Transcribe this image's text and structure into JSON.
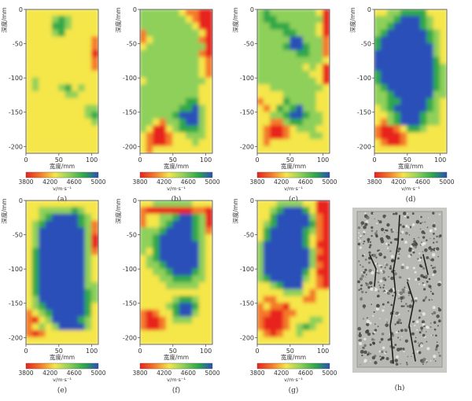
{
  "colorbar": {
    "colors": [
      "#e8221e",
      "#f4792a",
      "#f5e64a",
      "#8ed05a",
      "#2fa84a",
      "#2a4fb8"
    ],
    "ticks": [
      "3800",
      "4200",
      "4600",
      "5000"
    ],
    "unit_label": "v/m·s⁻¹"
  },
  "axes": {
    "ylabel": "深度/mm",
    "xlabel": "宽度/mm",
    "y_ticks": [
      "0",
      "-50",
      "-100",
      "-150",
      "-200"
    ],
    "x_ticks": [
      "0",
      "50",
      "100"
    ]
  },
  "panels": [
    {
      "label": "(a)"
    },
    {
      "label": "(b)"
    },
    {
      "label": "(c)"
    },
    {
      "label": "(d)"
    },
    {
      "label": "(e)"
    },
    {
      "label": "(f)"
    },
    {
      "label": "(g)"
    },
    {
      "label": "(h)"
    }
  ],
  "photo": {
    "colors": {
      "base": "#b7b7b4",
      "speck": "#3d3d3b",
      "crack": "#1e1e1c"
    }
  },
  "chart_data": [
    {
      "type": "heatmap",
      "panel": "(a)",
      "xlim": [
        0,
        110
      ],
      "ylim": [
        -210,
        0
      ],
      "value_range": [
        3800,
        5000
      ],
      "value_unit": "m/s",
      "grid": [
        "zzzzzzzzzzz",
        "zzzzgGgzzzz",
        "zzzzGGgzzzz",
        "zzzzgGzzzzz",
        "zzzzzzzzzzo",
        "zzzzzzzzzzo",
        "zzzzzzzzzzr",
        "zzzzzzzzzzo",
        "zzzzzzzzzzo",
        "zzzzzzzzzzz",
        "zgzzzzzzzzz",
        "zgzzzgGzgzz",
        "zzzzzzggzzz",
        "zzzzzzzzzzz",
        "zzzzzzzzzgg",
        "zzzzzzzzzgG",
        "zzzzzzzzzzg",
        "zzzzzzzzzzz",
        "zzzzzzzzzzz",
        "zzzzzzzzzzz",
        "zzzzzzzzzzz"
      ]
    },
    {
      "type": "heatmap",
      "panel": "(b)",
      "xlim": [
        0,
        110
      ],
      "ylim": [
        -210,
        0
      ],
      "value_range": [
        3800,
        5000
      ],
      "value_unit": "m/s",
      "grid": [
        "ggggggzoorr",
        "gggggggzorr",
        "ggggggggzrr",
        "oggggggggzr",
        "ozgggggggor",
        "zgggggggggr",
        "gggggggggor",
        "gggggggggzo",
        "gggggggggzo",
        "gggggggggzo",
        "zgggggggggz",
        "gggggggggzz",
        "gggggggggzz",
        "gggggggGGzz",
        "ggggggGGBgz",
        "gggggGBBBgz",
        "ggzoggGBBgz",
        "gzrrzgGGGgz",
        "zorrozzgggz",
        "zorrozzzgzz",
        "zozzzzzzzzz"
      ]
    },
    {
      "type": "heatmap",
      "panel": "(c)",
      "xlim": [
        0,
        110
      ],
      "ylim": [
        -210,
        0
      ],
      "value_range": [
        3800,
        5000
      ],
      "value_unit": "m/s",
      "grid": [
        "gGgggggggzr",
        "gGGgggggggr",
        "ggGGGggggzr",
        "ggggGGgggzr",
        "gggggBBgggo",
        "ggggGBBGggo",
        "ggggggGGggo",
        "ggggggggggz",
        "gggggggzgzr",
        "ggggggggzzr",
        "gggggggggzr",
        "zzggggggggz",
        "zzzzgggggzz",
        "ozzzGggggzz",
        "zozGgGBggzz",
        "zzggGBBGggz",
        "zzoogGGgggz",
        "zorrozgggzz",
        "zorrozzzggz",
        "zozzzzzzzzz",
        "zzzzzzzzzzz"
      ]
    },
    {
      "type": "heatmap",
      "panel": "(d)",
      "xlim": [
        0,
        110
      ],
      "ylim": [
        -210,
        0
      ],
      "value_range": [
        3800,
        5000
      ],
      "value_unit": "m/s",
      "grid": [
        "zzggGGGGzzz",
        "gggGBBBGgzz",
        "ggGBBBBGgzz",
        "gGBBBBBBGgz",
        "GBBBBBBBGgz",
        "GBBBBBBBBgz",
        "BBBBBBBBBgz",
        "BBBBBBBBBGz",
        "BBBBBBBBBGg",
        "GBBBBBBBBGg",
        "GBBBBBBBBGg",
        "gGBBBBBBBGg",
        "ggGBBBBBBgg",
        "ggGGBBBBGgz",
        "zgGBBBBBGgz",
        "zzgGBBBGggz",
        "zogGBBBGggz",
        "orrozGGgzzz",
        "orrrozzzzzz",
        "zorrozzzzzz",
        "zzzzzzzzzzz"
      ]
    },
    {
      "type": "heatmap",
      "panel": "(e)",
      "xlim": [
        0,
        110
      ],
      "ylim": [
        -210,
        0
      ],
      "value_range": [
        3800,
        5000
      ],
      "value_unit": "m/s",
      "grid": [
        "zzzzzzzzzzz",
        "zzgggggGgzz",
        "zzgGBBBBGgz",
        "zgGBBBBBGgo",
        "zgBBBBBBBgo",
        "zgBBBBBBBgr",
        "zgBBBBBBBgr",
        "zGBBBBBBBgo",
        "zGBBBBBBBgz",
        "zGBBBBBBBgz",
        "zGBBBBBBBgz",
        "zGBBBBBBBgz",
        "zGBBBBBBBgg",
        "zGBBBBBBBGg",
        "zgBBBBBBBGg",
        "zgGBBBBBBGz",
        "ozgGBBBBBGz",
        "orzgBBBBGgz",
        "ozgzgBBBBgz",
        "orozzzzzzzz",
        "zzzzzzzzzzz"
      ]
    },
    {
      "type": "heatmap",
      "panel": "(f)",
      "xlim": [
        0,
        110
      ],
      "ylim": [
        -210,
        0
      ],
      "value_range": [
        3800,
        5000
      ],
      "value_unit": "m/s",
      "grid": [
        "zzggggggzzz",
        "orrrrrrroor",
        "ozzggGBBGgr",
        "ozzgGBBBGgr",
        "gggGBBBBGgo",
        "ggGBBBBBGgz",
        "ggGBBBBBBgz",
        "gzGBBBBBBgz",
        "zgGBBBBBBgz",
        "zggGBBBBBgz",
        "zzggGBBBGgz",
        "zzzggGGGggz",
        "zzzzgggggzz",
        "zzzzzzzzzzz",
        "zzzzzgGGgzz",
        "zzzzgGBBGzz",
        "orozzGBBgzz",
        "orrozgggzzz",
        "orrozzzzzzz",
        "zzzzzzzzzzz",
        "zzzzzzzzzzz"
      ]
    },
    {
      "type": "heatmap",
      "panel": "(g)",
      "xlim": [
        0,
        110
      ],
      "ylim": [
        -210,
        0
      ],
      "value_range": [
        3800,
        5000
      ],
      "value_unit": "m/s",
      "grid": [
        "zzzggggzzrr",
        "zzgGBBBGzrr",
        "zzGBBBBBgor",
        "zgGBBBBBGor",
        "zGBBBBBGgor",
        "zGBBBBBGzor",
        "gBBBBBBGzrr",
        "gBBBBBBBgor",
        "gBBBBBBBgrr",
        "gBBBBBBBgor",
        "gBBBBBBGzrr",
        "gGBBBBBgzor",
        "zzgGBBBzzor",
        "zzzzgggzozz",
        "zoozzzzoozz",
        "ozoorzzzzzz",
        "oorroozzzzz",
        "orrrozzzggz",
        "orrrozgGgzz",
        "zorozzgzzzz",
        "zzzzzzzzzzz"
      ]
    }
  ]
}
